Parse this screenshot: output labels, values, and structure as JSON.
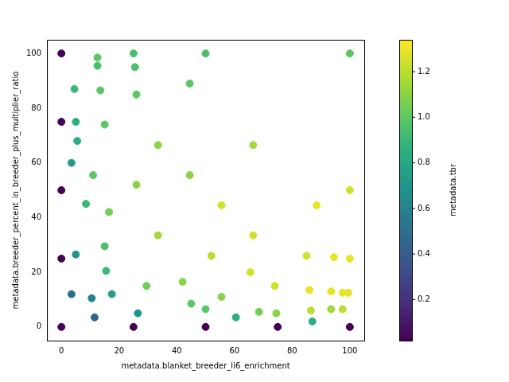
{
  "chart_data": {
    "type": "scatter",
    "xlabel": "metadata.blanket_breeder_li6_enrichment",
    "ylabel": "metadata.breeder_percent_in_breeder_plus_multiplier_ratio",
    "x": [
      0,
      0,
      0,
      0,
      0,
      4.5,
      5,
      5.5,
      3.5,
      5,
      3.5,
      8.5,
      11,
      12.5,
      12.5,
      13.5,
      15,
      16.5,
      15,
      15.5,
      10.5,
      11.5,
      17.5,
      25,
      25.5,
      26,
      26,
      33.5,
      33.5,
      25,
      26.5,
      29.5,
      44.5,
      44.5,
      42,
      45,
      50,
      50,
      50,
      55.5,
      55.5,
      52,
      60.5,
      66.5,
      66.5,
      65.5,
      68.5,
      74,
      74.5,
      75,
      85,
      86,
      86.5,
      87,
      88.5,
      93.5,
      93.5,
      94.5,
      97.5,
      97.5,
      99.5,
      100,
      100,
      100,
      100
    ],
    "y": [
      100,
      75,
      50,
      25,
      0,
      87,
      75,
      68,
      60,
      26.5,
      12,
      45,
      55.5,
      98.5,
      95.5,
      86.5,
      74,
      42,
      29.5,
      20.5,
      10.5,
      3.5,
      12,
      100,
      95,
      85,
      52,
      66.5,
      33.5,
      0,
      5,
      15,
      89,
      55.5,
      16.5,
      8.5,
      100,
      0,
      6.5,
      44.5,
      11,
      26,
      3.5,
      66.5,
      33.5,
      20,
      5.5,
      15,
      5,
      0,
      26,
      13.5,
      6,
      2,
      44.5,
      13,
      6.5,
      25.5,
      12.5,
      6.5,
      12.5,
      100,
      50,
      25,
      0
    ],
    "color_values": [
      0.02,
      0.02,
      0.02,
      0.02,
      0.02,
      0.9,
      0.85,
      0.85,
      0.75,
      0.7,
      0.5,
      0.9,
      1.0,
      1.0,
      0.95,
      1.0,
      1.0,
      1.05,
      0.95,
      0.9,
      0.6,
      0.45,
      0.75,
      0.95,
      0.95,
      1.0,
      1.1,
      1.1,
      1.15,
      0.02,
      0.7,
      1.05,
      1.0,
      1.1,
      1.1,
      1.0,
      0.95,
      0.02,
      1.0,
      1.25,
      1.1,
      1.2,
      0.85,
      1.15,
      1.25,
      1.25,
      1.05,
      1.25,
      1.1,
      0.02,
      1.25,
      1.3,
      1.2,
      0.85,
      1.3,
      1.3,
      1.15,
      1.3,
      1.3,
      1.2,
      1.3,
      1.0,
      1.25,
      1.3,
      0.02
    ],
    "xlim": [
      -5,
      105
    ],
    "ylim": [
      -5,
      105
    ],
    "xticks": [
      0,
      20,
      40,
      60,
      80,
      100
    ],
    "yticks": [
      0,
      20,
      40,
      60,
      80,
      100
    ],
    "grid": false,
    "colorbar": {
      "label": "metadata.tbr",
      "lim": [
        0.02,
        1.34
      ],
      "ticks": [
        0.2,
        0.4,
        0.6,
        0.8,
        {
          "value": 1,
          "label": "1.0"
        },
        1.2
      ]
    }
  }
}
